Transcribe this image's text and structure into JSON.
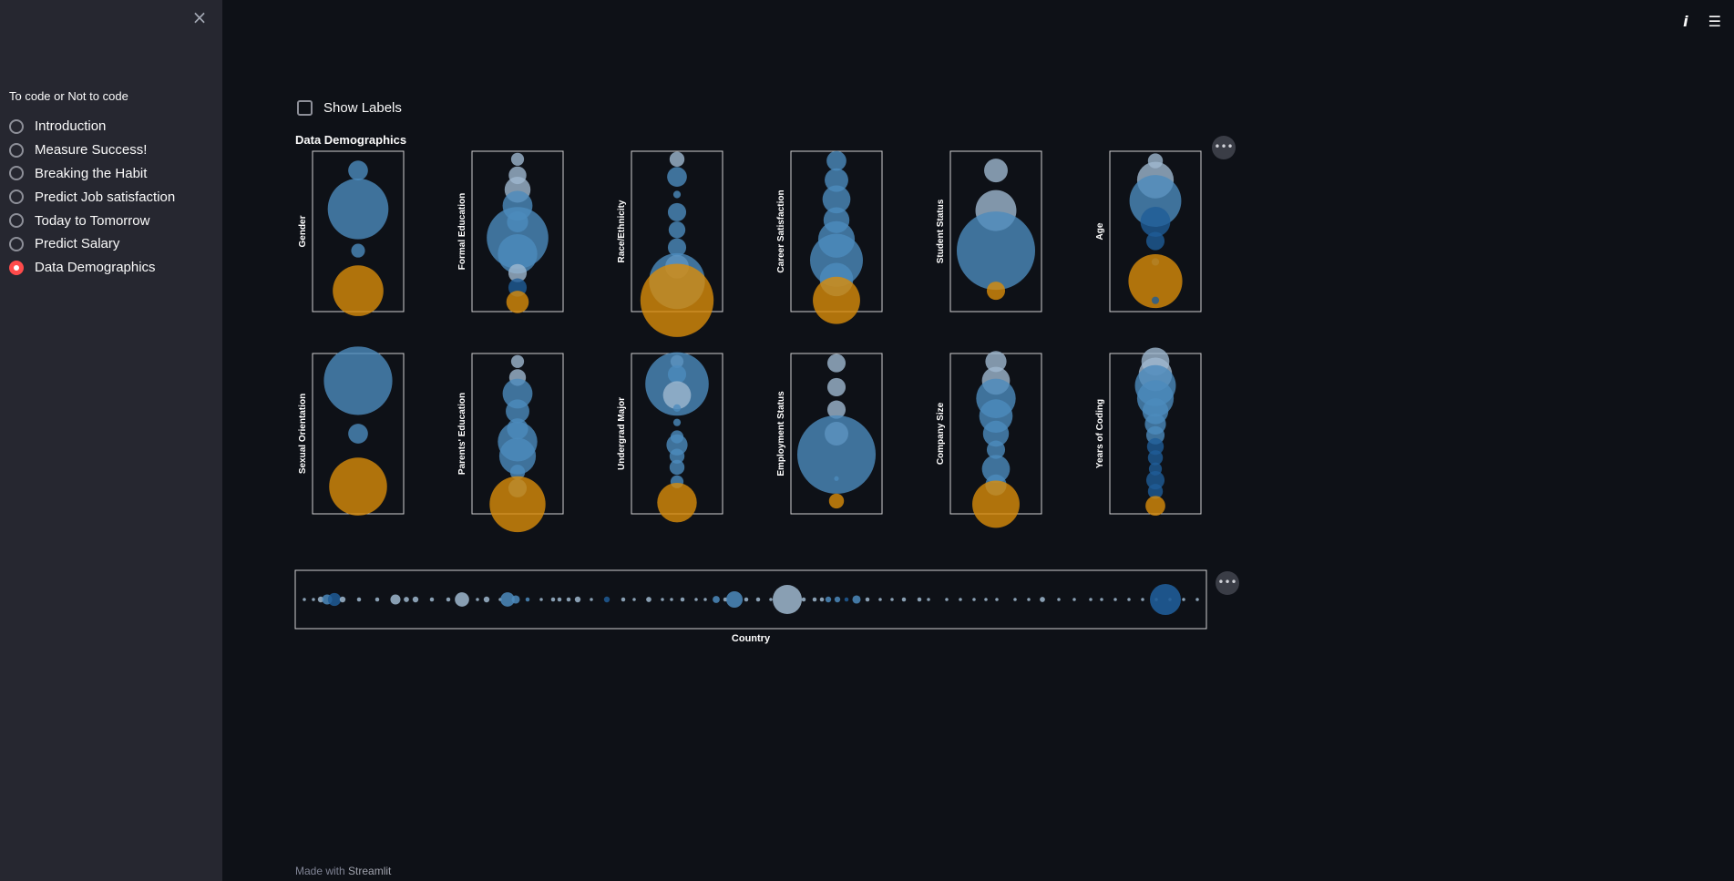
{
  "sidebar": {
    "close_icon": "×",
    "title": "To code or Not to code",
    "items": [
      {
        "label": "Introduction",
        "selected": false
      },
      {
        "label": "Measure Success!",
        "selected": false
      },
      {
        "label": "Breaking the Habit",
        "selected": false
      },
      {
        "label": "Predict Job satisfaction",
        "selected": false
      },
      {
        "label": "Today to Tomorrow",
        "selected": false
      },
      {
        "label": "Predict Salary",
        "selected": false
      },
      {
        "label": "Data Demographics",
        "selected": true
      }
    ]
  },
  "header": {
    "info_icon": "i",
    "menu_icon": "☰"
  },
  "main": {
    "show_labels": "Show Labels",
    "title": "Data Demographics",
    "more_icon": "•••"
  },
  "footer": {
    "prefix": "Made with",
    "brand": "Streamlit"
  },
  "colors": {
    "blue": "#4c8bbd",
    "light": "#9fb8cf",
    "dark": "#1f5c97",
    "orange": "#d98c0a"
  },
  "chart_data": {
    "type": "scatter",
    "panels": [
      {
        "label": "Gender",
        "bubbles": [
          [
            0.12,
            0.035,
            "blue"
          ],
          [
            0.36,
            0.33,
            "blue"
          ],
          [
            0.62,
            0.017,
            "blue"
          ],
          [
            0.87,
            0.23,
            "orange"
          ]
        ]
      },
      {
        "label": "Formal Education",
        "bubbles": [
          [
            0.05,
            0.015,
            "light"
          ],
          [
            0.15,
            0.028,
            "light"
          ],
          [
            0.24,
            0.06,
            "light"
          ],
          [
            0.34,
            0.08,
            "blue"
          ],
          [
            0.44,
            0.04,
            "blue"
          ],
          [
            0.54,
            0.34,
            "blue"
          ],
          [
            0.64,
            0.14,
            "blue"
          ],
          [
            0.76,
            0.03,
            "light"
          ],
          [
            0.85,
            0.03,
            "dark"
          ],
          [
            0.94,
            0.045,
            "orange"
          ]
        ]
      },
      {
        "label": "Race/Ethnicity",
        "bubbles": [
          [
            0.05,
            0.02,
            "light"
          ],
          [
            0.16,
            0.035,
            "blue"
          ],
          [
            0.27,
            0.005,
            "blue"
          ],
          [
            0.38,
            0.03,
            "blue"
          ],
          [
            0.49,
            0.025,
            "blue"
          ],
          [
            0.6,
            0.03,
            "blue"
          ],
          [
            0.72,
            0.05,
            "light"
          ],
          [
            0.81,
            0.28,
            "blue"
          ],
          [
            0.93,
            0.48,
            "orange"
          ]
        ]
      },
      {
        "label": "Career Satisfaction",
        "bubbles": [
          [
            0.06,
            0.035,
            "blue"
          ],
          [
            0.18,
            0.05,
            "blue"
          ],
          [
            0.3,
            0.07,
            "blue"
          ],
          [
            0.43,
            0.06,
            "blue"
          ],
          [
            0.55,
            0.12,
            "blue"
          ],
          [
            0.68,
            0.25,
            "blue"
          ],
          [
            0.8,
            0.1,
            "blue"
          ],
          [
            0.93,
            0.2,
            "orange"
          ]
        ]
      },
      {
        "label": "Student Status",
        "bubbles": [
          [
            0.12,
            0.05,
            "light"
          ],
          [
            0.37,
            0.15,
            "light"
          ],
          [
            0.62,
            0.55,
            "blue"
          ],
          [
            0.87,
            0.03,
            "orange"
          ]
        ]
      },
      {
        "label": "Age",
        "bubbles": [
          [
            0.06,
            0.02,
            "light"
          ],
          [
            0.18,
            0.12,
            "light"
          ],
          [
            0.31,
            0.24,
            "blue"
          ],
          [
            0.44,
            0.08,
            "dark"
          ],
          [
            0.56,
            0.03,
            "dark"
          ],
          [
            0.69,
            0.005,
            "dark"
          ],
          [
            0.81,
            0.26,
            "orange"
          ],
          [
            0.93,
            0.005,
            "dark"
          ]
        ]
      },
      {
        "label": "Sexual Orientation",
        "bubbles": [
          [
            0.17,
            0.42,
            "blue"
          ],
          [
            0.5,
            0.035,
            "blue"
          ],
          [
            0.83,
            0.3,
            "orange"
          ]
        ]
      },
      {
        "label": "Parents' Education",
        "bubbles": [
          [
            0.05,
            0.015,
            "light"
          ],
          [
            0.15,
            0.025,
            "light"
          ],
          [
            0.25,
            0.08,
            "blue"
          ],
          [
            0.36,
            0.05,
            "blue"
          ],
          [
            0.47,
            0.04,
            "blue"
          ],
          [
            0.55,
            0.14,
            "blue"
          ],
          [
            0.64,
            0.12,
            "blue"
          ],
          [
            0.74,
            0.02,
            "blue"
          ],
          [
            0.84,
            0.03,
            "blue"
          ],
          [
            0.94,
            0.28,
            "orange"
          ]
        ]
      },
      {
        "label": "Undergrad Major",
        "bubbles": [
          [
            0.05,
            0.015,
            "light"
          ],
          [
            0.13,
            0.03,
            "blue"
          ],
          [
            0.19,
            0.36,
            "blue"
          ],
          [
            0.26,
            0.07,
            "light"
          ],
          [
            0.34,
            0.005,
            "blue"
          ],
          [
            0.43,
            0.005,
            "blue"
          ],
          [
            0.52,
            0.015,
            "blue"
          ],
          [
            0.57,
            0.04,
            "blue"
          ],
          [
            0.64,
            0.02,
            "blue"
          ],
          [
            0.71,
            0.02,
            "blue"
          ],
          [
            0.8,
            0.015,
            "blue"
          ],
          [
            0.93,
            0.14,
            "orange"
          ]
        ]
      },
      {
        "label": "Employment Status",
        "bubbles": [
          [
            0.06,
            0.03,
            "light"
          ],
          [
            0.21,
            0.03,
            "light"
          ],
          [
            0.35,
            0.03,
            "light"
          ],
          [
            0.5,
            0.05,
            "light"
          ],
          [
            0.63,
            0.55,
            "blue"
          ],
          [
            0.78,
            0.002,
            "blue"
          ],
          [
            0.92,
            0.02,
            "orange"
          ]
        ]
      },
      {
        "label": "Company Size",
        "bubbles": [
          [
            0.05,
            0.04,
            "light"
          ],
          [
            0.17,
            0.07,
            "light"
          ],
          [
            0.28,
            0.14,
            "blue"
          ],
          [
            0.39,
            0.1,
            "blue"
          ],
          [
            0.5,
            0.06,
            "blue"
          ],
          [
            0.6,
            0.03,
            "blue"
          ],
          [
            0.72,
            0.07,
            "blue"
          ],
          [
            0.82,
            0.04,
            "blue"
          ],
          [
            0.94,
            0.2,
            "orange"
          ]
        ]
      },
      {
        "label": "Years of Coding",
        "bubbles": [
          [
            0.05,
            0.07,
            "light"
          ],
          [
            0.13,
            0.1,
            "light"
          ],
          [
            0.2,
            0.15,
            "blue"
          ],
          [
            0.28,
            0.12,
            "blue"
          ],
          [
            0.36,
            0.06,
            "blue"
          ],
          [
            0.44,
            0.04,
            "blue"
          ],
          [
            0.51,
            0.03,
            "blue"
          ],
          [
            0.58,
            0.025,
            "dark"
          ],
          [
            0.65,
            0.02,
            "dark"
          ],
          [
            0.72,
            0.015,
            "dark"
          ],
          [
            0.79,
            0.03,
            "dark"
          ],
          [
            0.86,
            0.02,
            "dark"
          ],
          [
            0.95,
            0.035,
            "orange"
          ]
        ]
      }
    ],
    "country": {
      "label": "Country",
      "bubbles": [
        [
          0.01,
          0.003,
          "light"
        ],
        [
          0.02,
          0.003,
          "light"
        ],
        [
          0.028,
          0.01,
          "light"
        ],
        [
          0.035,
          0.03,
          "blue"
        ],
        [
          0.043,
          0.05,
          "dark"
        ],
        [
          0.052,
          0.01,
          "light"
        ],
        [
          0.07,
          0.005,
          "light"
        ],
        [
          0.09,
          0.005,
          "light"
        ],
        [
          0.11,
          0.03,
          "light"
        ],
        [
          0.122,
          0.008,
          "light"
        ],
        [
          0.132,
          0.01,
          "light"
        ],
        [
          0.15,
          0.005,
          "light"
        ],
        [
          0.168,
          0.005,
          "light"
        ],
        [
          0.183,
          0.06,
          "light"
        ],
        [
          0.2,
          0.003,
          "light"
        ],
        [
          0.21,
          0.01,
          "light"
        ],
        [
          0.225,
          0.003,
          "light"
        ],
        [
          0.233,
          0.06,
          "blue"
        ],
        [
          0.242,
          0.02,
          "blue"
        ],
        [
          0.255,
          0.005,
          "blue"
        ],
        [
          0.27,
          0.003,
          "light"
        ],
        [
          0.283,
          0.005,
          "light"
        ],
        [
          0.29,
          0.005,
          "light"
        ],
        [
          0.3,
          0.005,
          "light"
        ],
        [
          0.31,
          0.01,
          "light"
        ],
        [
          0.325,
          0.003,
          "light"
        ],
        [
          0.342,
          0.01,
          "dark"
        ],
        [
          0.36,
          0.005,
          "light"
        ],
        [
          0.372,
          0.003,
          "light"
        ],
        [
          0.388,
          0.008,
          "light"
        ],
        [
          0.403,
          0.003,
          "light"
        ],
        [
          0.413,
          0.003,
          "light"
        ],
        [
          0.425,
          0.005,
          "light"
        ],
        [
          0.44,
          0.003,
          "light"
        ],
        [
          0.45,
          0.003,
          "light"
        ],
        [
          0.462,
          0.015,
          "blue"
        ],
        [
          0.472,
          0.005,
          "light"
        ],
        [
          0.482,
          0.08,
          "blue"
        ],
        [
          0.495,
          0.005,
          "light"
        ],
        [
          0.508,
          0.005,
          "light"
        ],
        [
          0.522,
          0.003,
          "light"
        ],
        [
          0.54,
          0.25,
          "light"
        ],
        [
          0.558,
          0.005,
          "light"
        ],
        [
          0.57,
          0.005,
          "light"
        ],
        [
          0.578,
          0.005,
          "light"
        ],
        [
          0.585,
          0.01,
          "blue"
        ],
        [
          0.595,
          0.01,
          "blue"
        ],
        [
          0.605,
          0.005,
          "dark"
        ],
        [
          0.616,
          0.02,
          "blue"
        ],
        [
          0.628,
          0.005,
          "light"
        ],
        [
          0.642,
          0.003,
          "light"
        ],
        [
          0.655,
          0.003,
          "light"
        ],
        [
          0.668,
          0.005,
          "light"
        ],
        [
          0.685,
          0.005,
          "light"
        ],
        [
          0.695,
          0.003,
          "light"
        ],
        [
          0.715,
          0.003,
          "light"
        ],
        [
          0.73,
          0.003,
          "light"
        ],
        [
          0.745,
          0.003,
          "light"
        ],
        [
          0.758,
          0.003,
          "light"
        ],
        [
          0.77,
          0.003,
          "light"
        ],
        [
          0.79,
          0.003,
          "light"
        ],
        [
          0.805,
          0.003,
          "light"
        ],
        [
          0.82,
          0.008,
          "light"
        ],
        [
          0.838,
          0.003,
          "light"
        ],
        [
          0.855,
          0.003,
          "light"
        ],
        [
          0.873,
          0.003,
          "light"
        ],
        [
          0.885,
          0.003,
          "light"
        ],
        [
          0.9,
          0.003,
          "light"
        ],
        [
          0.915,
          0.003,
          "light"
        ],
        [
          0.93,
          0.003,
          "light"
        ],
        [
          0.945,
          0.003,
          "light"
        ],
        [
          0.96,
          0.003,
          "light"
        ],
        [
          0.975,
          0.003,
          "light"
        ],
        [
          0.99,
          0.003,
          "light"
        ]
      ]
    }
  }
}
